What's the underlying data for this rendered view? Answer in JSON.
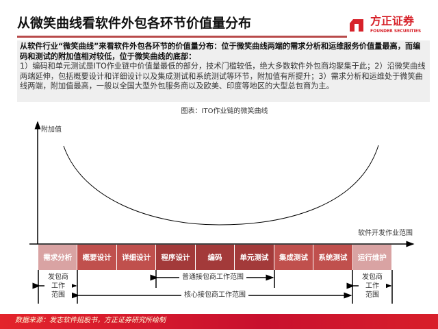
{
  "header": {
    "title": "从微笑曲线看软件外包各环节价值量分布"
  },
  "logo": {
    "name": "方正证券",
    "subtitle": "FOUNDER SECURITIES",
    "color": "#d7222a"
  },
  "summary": {
    "bold": "从软件行业“微笑曲线”来看软件外包各环节的价值量分布：位于微笑曲线两端的需求分析和运维服务价值量最高，而编码和测试的附加值相对较低，位于微笑曲线的底部：",
    "normal": "1）编码和单元测试是ITO作业链中价值量最低的部分，技术门槛较低，绝大多数软件外包商均聚集于此；2）沿微笑曲线两端延伸，包括概要设计和详细设计以及集成测试和系统测试等环节，附加值有所提升；3）需求分析和运维处于微笑曲线两端，附加值最高，一般以全国大型外包服务商以及欧美、印度等地区的大型总包商为主。"
  },
  "diagram": {
    "title": "图表：ITO作业链的微笑曲线",
    "y_axis_label": "附加值",
    "x_axis_label": "软件开发作业范围",
    "stages": [
      {
        "label": "需求分析",
        "color": "#d9a3a3"
      },
      {
        "label": "概要设计",
        "color": "#c0504d"
      },
      {
        "label": "详细设计",
        "color": "#c0504d"
      },
      {
        "label": "程序设计",
        "color": "#a33a3a"
      },
      {
        "label": "编码",
        "color": "#a33a3a"
      },
      {
        "label": "单元测试",
        "color": "#a33a3a"
      },
      {
        "label": "集成测试",
        "color": "#c0504d"
      },
      {
        "label": "系统测试",
        "color": "#c0504d"
      },
      {
        "label": "运行维护",
        "color": "#d9a3a3"
      }
    ],
    "ranges": {
      "client_left": "发包商\n工作\n范围",
      "client_right": "发包商\n工作\n范围",
      "normal_contractor": "普通接包商工作范围",
      "core_contractor": "核心接包商工作范围"
    }
  },
  "footer": {
    "source": "数据来源：发志软件招股书，方正证券研究所绘制"
  }
}
